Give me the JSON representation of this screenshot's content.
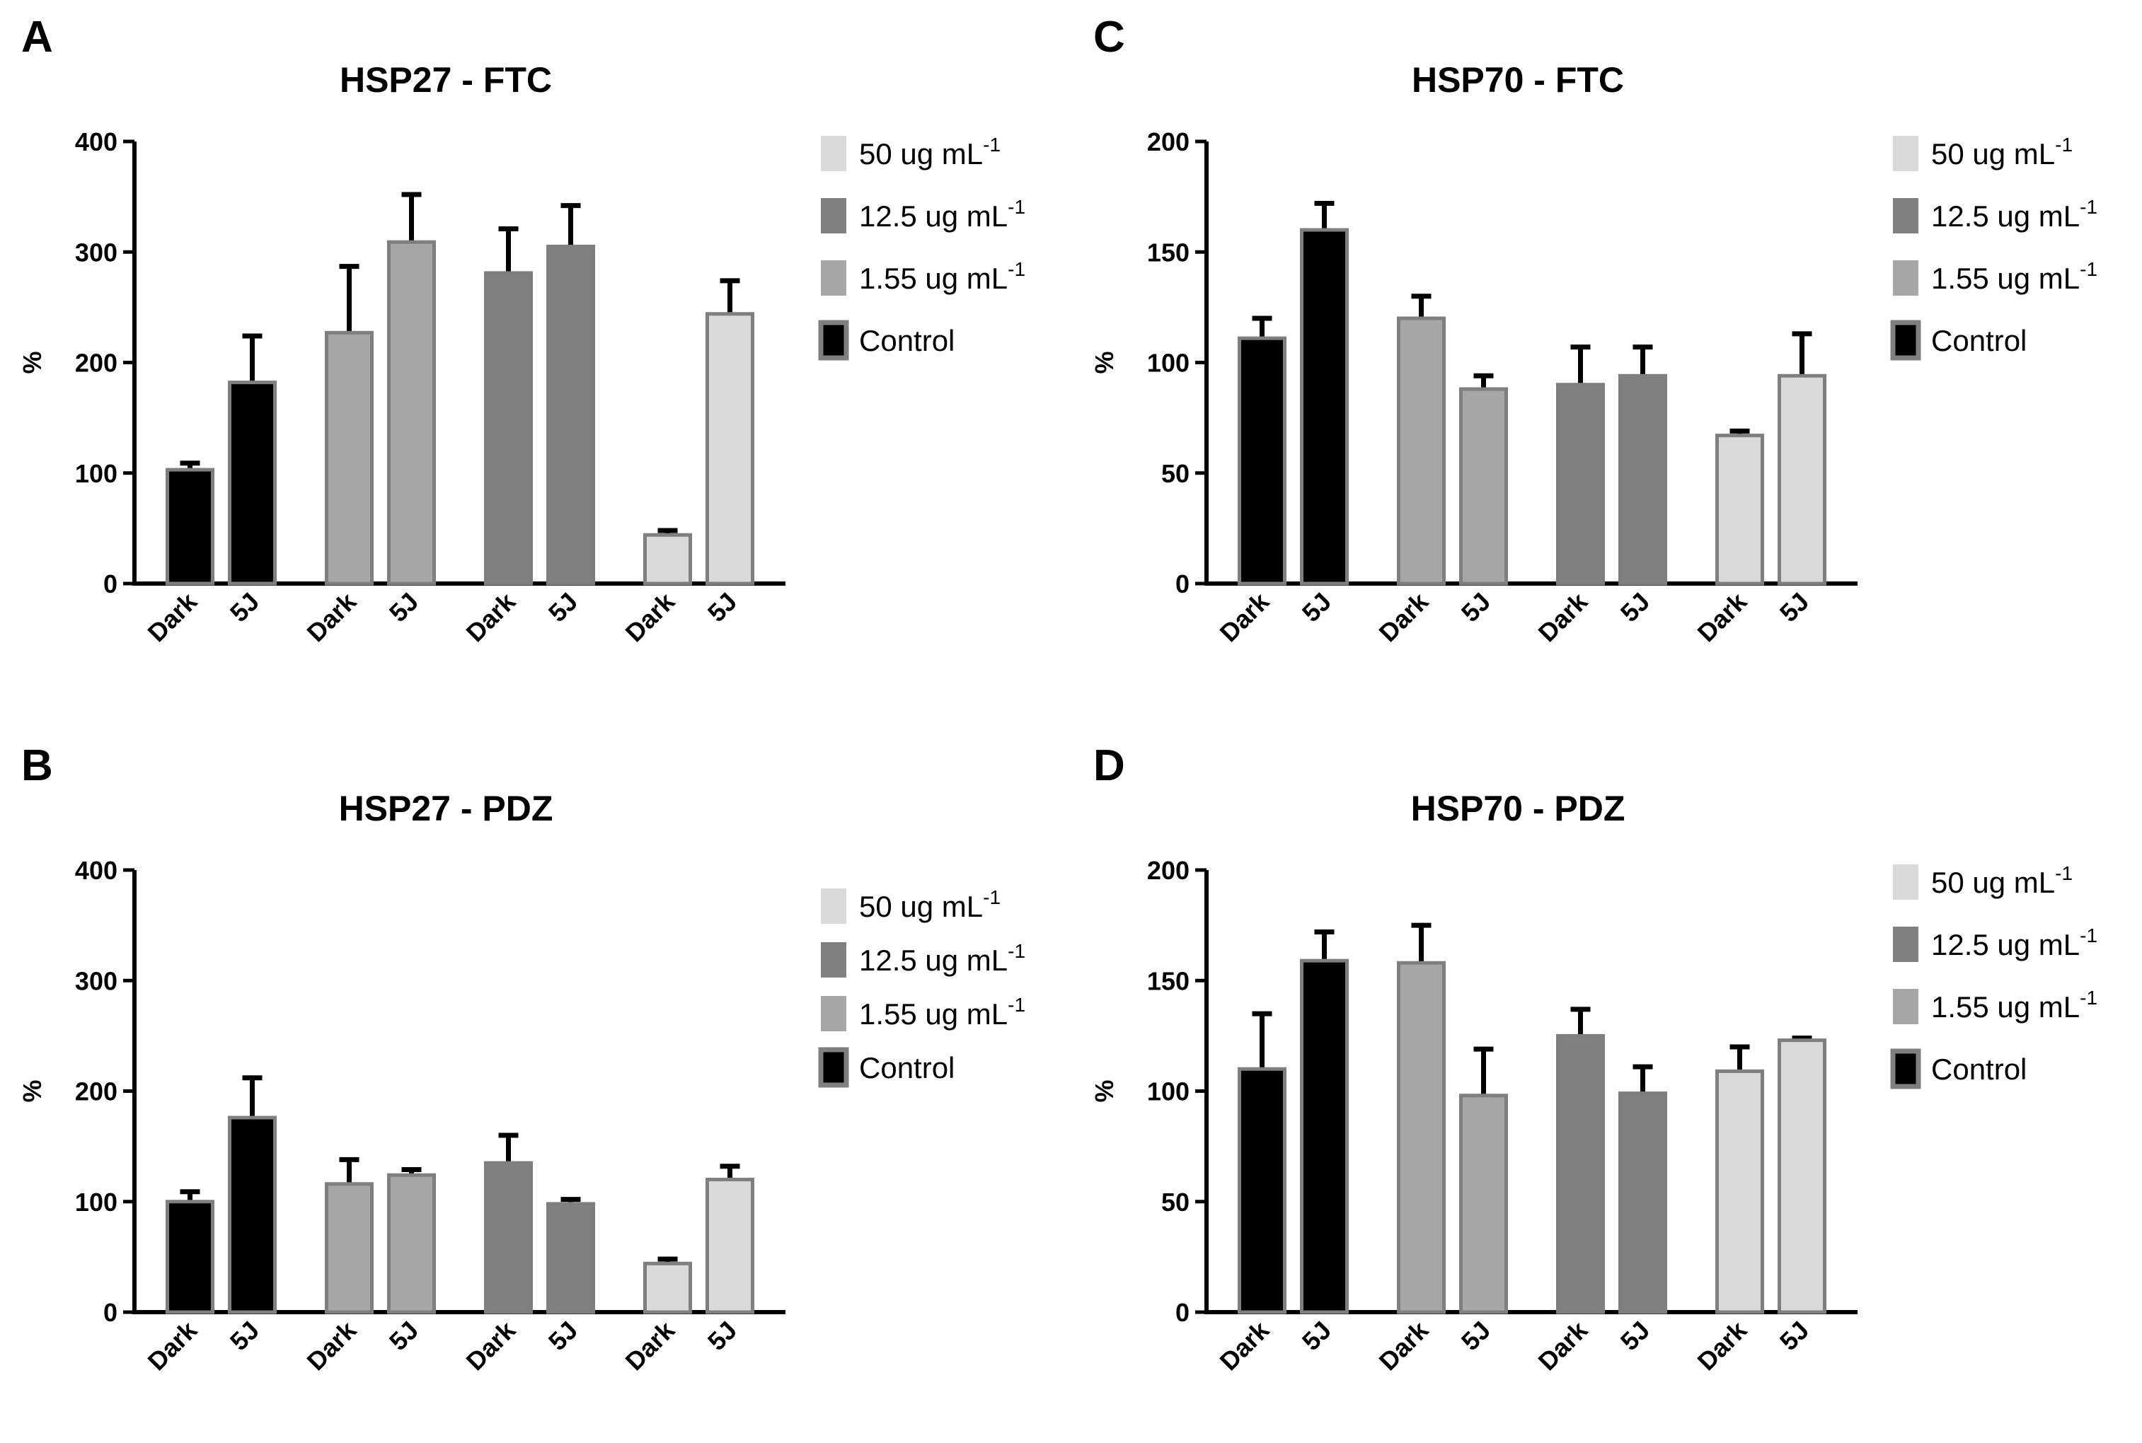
{
  "chart_data": [
    {
      "panel": "A",
      "type": "bar",
      "title": "HSP27 - FTC",
      "ylabel": "%",
      "xlabel": "",
      "ylim": [
        0,
        400
      ],
      "yticks": [
        0,
        100,
        200,
        300,
        400
      ],
      "groups": [
        {
          "series": "Control",
          "bars": [
            {
              "label": "Dark",
              "value": 103,
              "error": 6
            },
            {
              "label": "5J",
              "value": 182,
              "error": 42
            }
          ]
        },
        {
          "series": "1.55 ug mL-1",
          "bars": [
            {
              "label": "Dark",
              "value": 227,
              "error": 60
            },
            {
              "label": "5J",
              "value": 309,
              "error": 43
            }
          ]
        },
        {
          "series": "12.5 ug mL-1",
          "bars": [
            {
              "label": "Dark",
              "value": 281,
              "error": 40
            },
            {
              "label": "5J",
              "value": 305,
              "error": 37
            }
          ]
        },
        {
          "series": "50 ug mL-1",
          "bars": [
            {
              "label": "Dark",
              "value": 44,
              "error": 4
            },
            {
              "label": "5J",
              "value": 244,
              "error": 30
            }
          ]
        }
      ],
      "legend": [
        {
          "label": "50 ug mL",
          "sup": "-1",
          "color": "#d9d9d9"
        },
        {
          "label": "12.5 ug mL",
          "sup": "-1",
          "color": "#808080"
        },
        {
          "label": "1.55 ug mL",
          "sup": "-1",
          "color": "#a6a6a9"
        },
        {
          "label": "Control",
          "sup": "",
          "color": "#000000"
        }
      ]
    },
    {
      "panel": "C",
      "type": "bar",
      "title": "HSP70 - FTC",
      "ylabel": "%",
      "xlabel": "",
      "ylim": [
        0,
        200
      ],
      "yticks": [
        0,
        50,
        100,
        150,
        200
      ],
      "groups": [
        {
          "series": "Control",
          "bars": [
            {
              "label": "Dark",
              "value": 111,
              "error": 9
            },
            {
              "label": "5J",
              "value": 160,
              "error": 12
            }
          ]
        },
        {
          "series": "1.55 ug mL-1",
          "bars": [
            {
              "label": "Dark",
              "value": 120,
              "error": 10
            },
            {
              "label": "5J",
              "value": 88,
              "error": 6
            }
          ]
        },
        {
          "series": "12.5 ug mL-1",
          "bars": [
            {
              "label": "Dark",
              "value": 90,
              "error": 17
            },
            {
              "label": "5J",
              "value": 94,
              "error": 13
            }
          ]
        },
        {
          "series": "50 ug mL-1",
          "bars": [
            {
              "label": "Dark",
              "value": 67,
              "error": 2
            },
            {
              "label": "5J",
              "value": 94,
              "error": 19
            }
          ]
        }
      ],
      "legend": [
        {
          "label": "50 ug mL",
          "sup": "-1",
          "color": "#d9d9d9"
        },
        {
          "label": "12.5 ug mL",
          "sup": "-1",
          "color": "#808080"
        },
        {
          "label": "1.55 ug mL",
          "sup": "-1",
          "color": "#a6a6a9"
        },
        {
          "label": "Control",
          "sup": "",
          "color": "#000000"
        }
      ]
    },
    {
      "panel": "B",
      "type": "bar",
      "title": "HSP27 - PDZ",
      "ylabel": "%",
      "xlabel": "",
      "ylim": [
        0,
        400
      ],
      "yticks": [
        0,
        100,
        200,
        300,
        400
      ],
      "groups": [
        {
          "series": "Control",
          "bars": [
            {
              "label": "Dark",
              "value": 100,
              "error": 9
            },
            {
              "label": "5J",
              "value": 176,
              "error": 36
            }
          ]
        },
        {
          "series": "1.55 ug mL-1",
          "bars": [
            {
              "label": "Dark",
              "value": 116,
              "error": 22
            },
            {
              "label": "5J",
              "value": 124,
              "error": 5
            }
          ]
        },
        {
          "series": "12.5 ug mL-1",
          "bars": [
            {
              "label": "Dark",
              "value": 135,
              "error": 25
            },
            {
              "label": "5J",
              "value": 98,
              "error": 4
            }
          ]
        },
        {
          "series": "50 ug mL-1",
          "bars": [
            {
              "label": "Dark",
              "value": 44,
              "error": 4
            },
            {
              "label": "5J",
              "value": 120,
              "error": 12
            }
          ]
        }
      ],
      "legend": [
        {
          "label": "50 ug mL",
          "sup": "-1",
          "color": "#d9d9d9"
        },
        {
          "label": "12.5 ug mL",
          "sup": "-1",
          "color": "#808080"
        },
        {
          "label": "1.55 ug mL",
          "sup": "-1",
          "color": "#a6a6a9"
        },
        {
          "label": "Control",
          "sup": "",
          "color": "#000000"
        }
      ]
    },
    {
      "panel": "D",
      "type": "bar",
      "title": "HSP70 - PDZ",
      "ylabel": "%",
      "xlabel": "",
      "ylim": [
        0,
        200
      ],
      "yticks": [
        0,
        50,
        100,
        150,
        200
      ],
      "groups": [
        {
          "series": "Control",
          "bars": [
            {
              "label": "Dark",
              "value": 110,
              "error": 25
            },
            {
              "label": "5J",
              "value": 159,
              "error": 13
            }
          ]
        },
        {
          "series": "1.55 ug mL-1",
          "bars": [
            {
              "label": "Dark",
              "value": 158,
              "error": 17
            },
            {
              "label": "5J",
              "value": 98,
              "error": 21
            }
          ]
        },
        {
          "series": "12.5 ug mL-1",
          "bars": [
            {
              "label": "Dark",
              "value": 125,
              "error": 12
            },
            {
              "label": "5J",
              "value": 99,
              "error": 12
            }
          ]
        },
        {
          "series": "50 ug mL-1",
          "bars": [
            {
              "label": "Dark",
              "value": 109,
              "error": 11
            },
            {
              "label": "5J",
              "value": 123,
              "error": 1
            }
          ]
        }
      ],
      "legend": [
        {
          "label": "50 ug mL",
          "sup": "-1",
          "color": "#d9d9d9"
        },
        {
          "label": "12.5 ug mL",
          "sup": "-1",
          "color": "#808080"
        },
        {
          "label": "1.55 ug mL",
          "sup": "-1",
          "color": "#a6a6a9"
        },
        {
          "label": "Control",
          "sup": "",
          "color": "#000000"
        }
      ]
    }
  ],
  "series_colors": {
    "Control": "#000000",
    "1.55 ug mL-1": "#a6a6a9",
    "12.5 ug mL-1": "#808080",
    "50 ug mL-1": "#d9d9d9"
  },
  "outline_color": "#7f7f7f",
  "error_color": "#000000"
}
